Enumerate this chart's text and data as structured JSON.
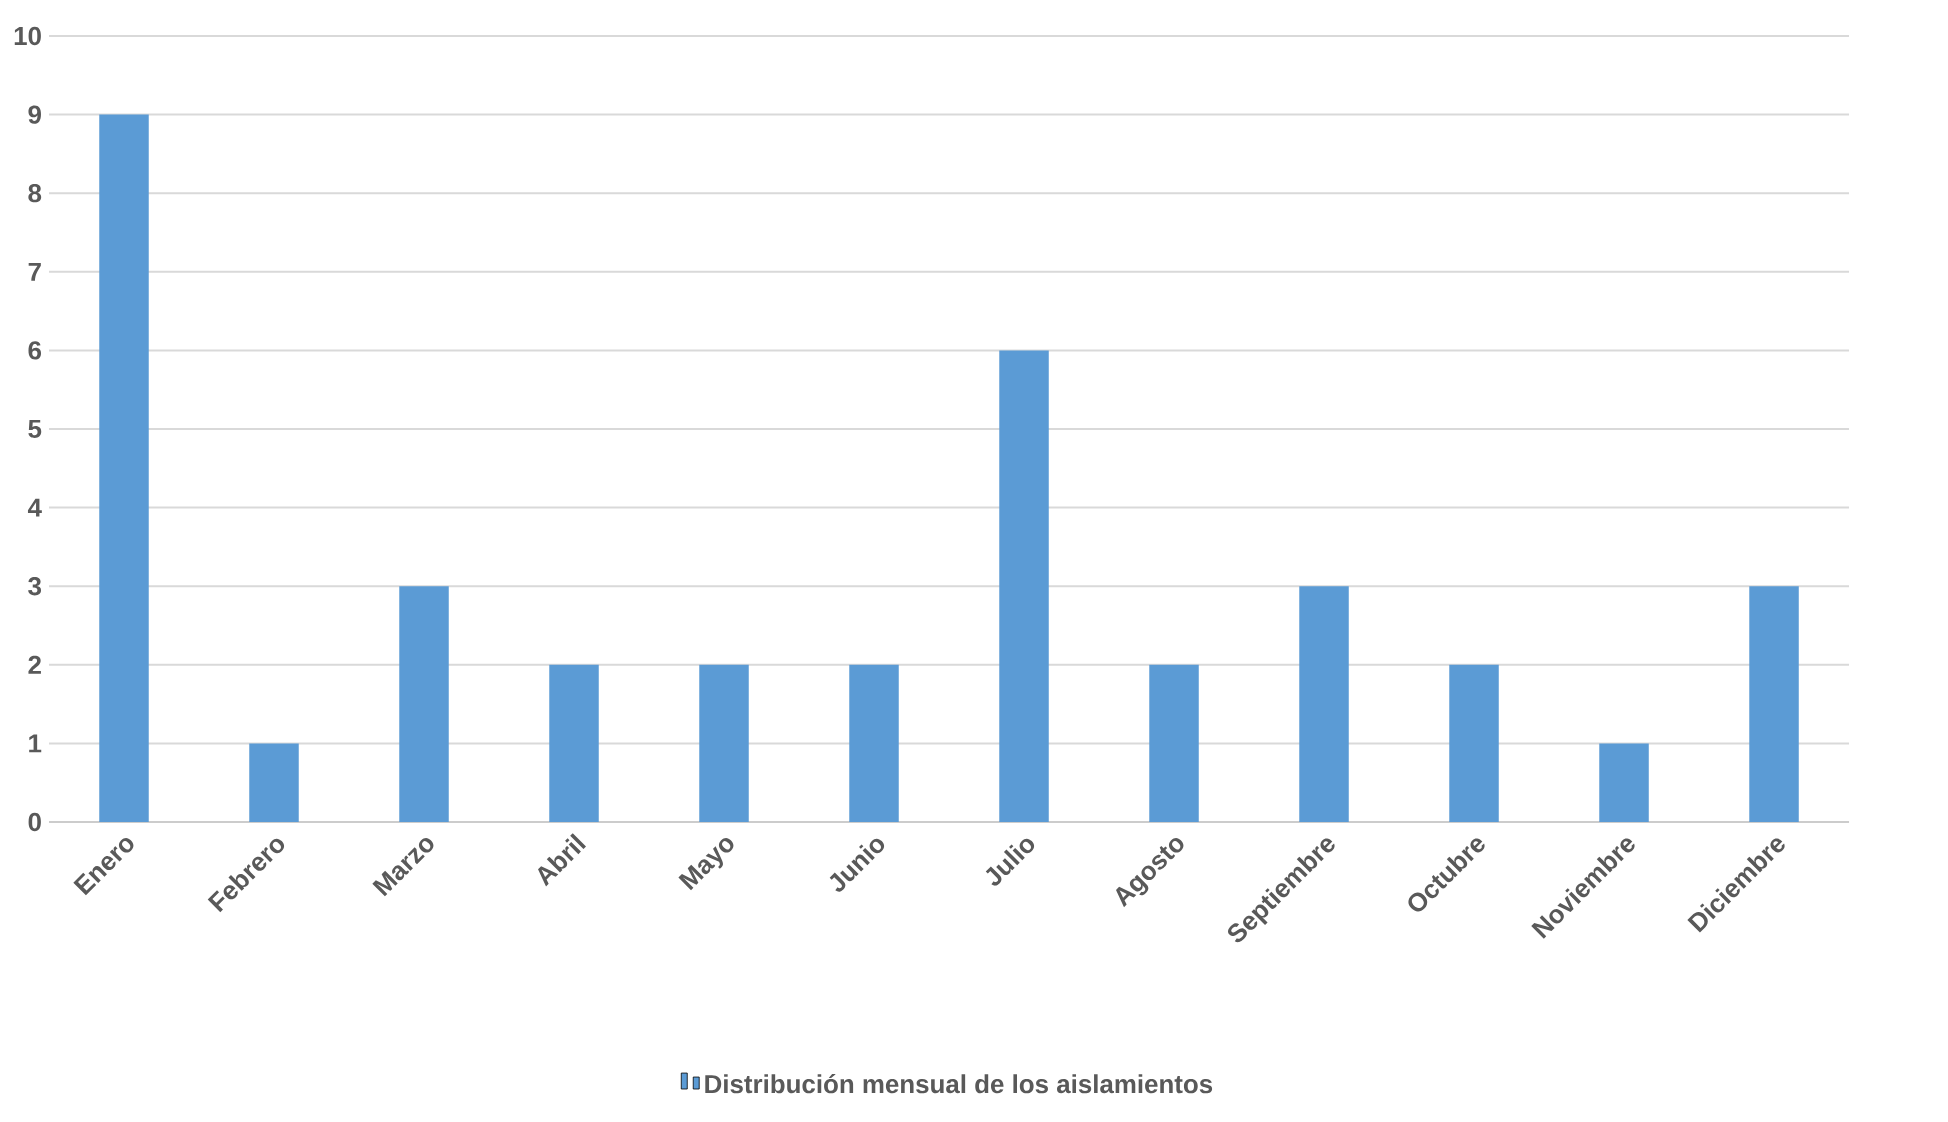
{
  "chart_data": {
    "type": "bar",
    "categories": [
      "Enero",
      "Febrero",
      "Marzo",
      "Abril",
      "Mayo",
      "Junio",
      "Julio",
      "Agosto",
      "Septiembre",
      "Octubre",
      "Noviembre",
      "Diciembre"
    ],
    "series": [
      {
        "name": "Distribución mensual de los aislamientos",
        "color": "#5b9bd5",
        "values": [
          9,
          1,
          3,
          2,
          2,
          2,
          6,
          2,
          3,
          2,
          1,
          3
        ]
      }
    ],
    "ylim": [
      0,
      10
    ],
    "yticks": [
      0,
      1,
      2,
      3,
      4,
      5,
      6,
      7,
      8,
      9,
      10
    ],
    "grid": "y",
    "legend": "bottom"
  }
}
